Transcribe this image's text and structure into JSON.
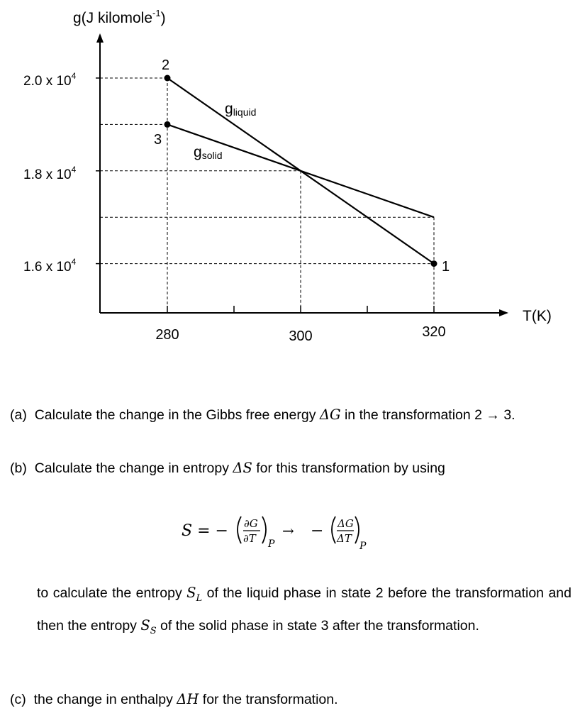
{
  "chart_data": {
    "type": "line",
    "ylabel_main": "g(J kilomole",
    "ylabel_sup": "-1",
    "ylabel_close": ")",
    "xlabel": "T(K)",
    "x_ticks": [
      {
        "value": 280,
        "label": "280"
      },
      {
        "value": 300,
        "label": "300"
      },
      {
        "value": 320,
        "label": "320"
      }
    ],
    "x_minor_ticks": [
      290,
      310
    ],
    "y_ticks": [
      {
        "value": 20000,
        "mantissa": "2.0 x 10",
        "exp": "4"
      },
      {
        "value": 18000,
        "mantissa": "1.8 x 10",
        "exp": "4"
      },
      {
        "value": 16000,
        "mantissa": "1.6 x 10",
        "exp": "4"
      }
    ],
    "xlim": [
      270,
      330
    ],
    "ylim": [
      15000,
      20500
    ],
    "series": [
      {
        "name_base": "g",
        "name_sub": "liquid",
        "x": [
          280,
          300,
          320
        ],
        "y": [
          20000,
          18000,
          16000
        ]
      },
      {
        "name_base": "g",
        "name_sub": "solid",
        "x": [
          280,
          300,
          320
        ],
        "y": [
          19000,
          18000,
          17000
        ]
      }
    ],
    "points": [
      {
        "label": "1",
        "x": 320,
        "y": 16000
      },
      {
        "label": "2",
        "x": 280,
        "y": 20000
      },
      {
        "label": "3",
        "x": 280,
        "y": 19000
      }
    ],
    "dashed_levels": [
      20000,
      19000,
      18000,
      17000,
      16000
    ],
    "dashed_verticals": [
      280,
      300,
      320
    ]
  },
  "questions": {
    "a": {
      "label": "(a)",
      "text": "Calculate the change in the Gibbs free energy",
      "sym": "ΔG",
      "rest": "in the transformation 2 → 3."
    },
    "b": {
      "label": "(b)",
      "text": "Calculate the change in entropy",
      "sym": "ΔS",
      "rest": "for this transformation by using"
    },
    "c": {
      "label": "(c)",
      "text": "the change in enthalpy",
      "sym": "ΔH",
      "rest": "for the transformation."
    }
  },
  "formula": {
    "lhs": "S = −",
    "dG": "∂G",
    "dT": "∂T",
    "sub_p": "P",
    "arrow": "→",
    "minus": "−",
    "DG": "ΔG",
    "DT": "ΔT"
  },
  "paragraph": {
    "p1": "to calculate the entropy",
    "sL_base": "S",
    "sL_sub": "L",
    "p2": "of the liquid phase in state 2 before the transformation and then the entropy",
    "sS_base": "S",
    "sS_sub": "S",
    "p3": "of the solid phase in state 3 after the transformation."
  }
}
